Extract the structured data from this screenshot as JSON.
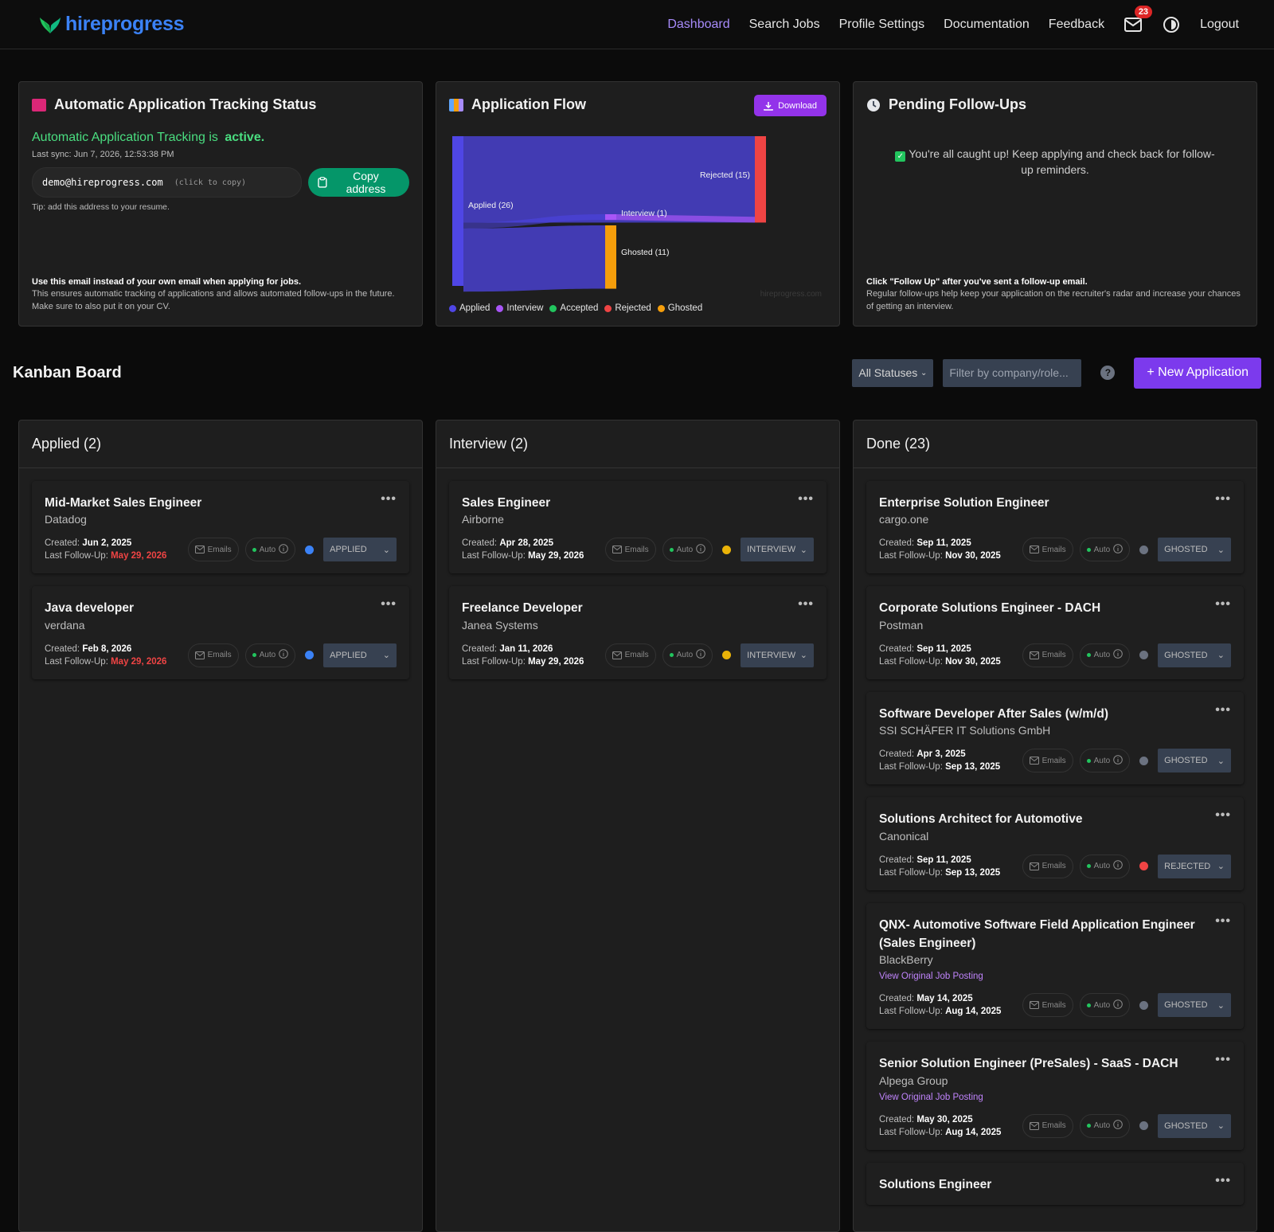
{
  "nav": {
    "brand": "hireprogress",
    "links": [
      "Dashboard",
      "Search Jobs",
      "Profile Settings",
      "Documentation",
      "Feedback"
    ],
    "mail_badge": "23",
    "logout": "Logout"
  },
  "tracking": {
    "title": "Automatic Application Tracking Status",
    "status_prefix": "Automatic Application Tracking is",
    "status_word": "active.",
    "last_sync": "Last sync: Jun 7, 2026, 12:53:38 PM",
    "email": "demo@hireprogress.com",
    "email_hint": "(click to copy)",
    "copy_label": "Copy address",
    "tip": "Tip: add this address to your resume.",
    "foot_bold": "Use this email instead of your own email when applying for jobs.",
    "foot_text": "This ensures automatic tracking of applications and allows automated follow-ups in the future. Make sure to also put it on your CV."
  },
  "flow": {
    "title": "Application Flow",
    "download_label": "Download",
    "watermark": "hireprogress.com",
    "nodes": {
      "applied": "Applied (26)",
      "rejected": "Rejected (15)",
      "interview": "Interview (1)",
      "ghosted": "Ghosted (11)"
    },
    "legend": [
      "Applied",
      "Interview",
      "Accepted",
      "Rejected",
      "Ghosted"
    ],
    "colors": {
      "applied": "#4f46e5",
      "interview": "#a855f7",
      "accepted": "#22c55e",
      "rejected": "#ef4444",
      "ghosted": "#f59e0b"
    }
  },
  "chart_data": {
    "type": "sankey",
    "nodes": [
      "Applied",
      "Rejected",
      "Interview",
      "Ghosted"
    ],
    "links": [
      {
        "source": "Applied",
        "target": "Rejected",
        "value": 15
      },
      {
        "source": "Applied",
        "target": "Interview",
        "value": 1
      },
      {
        "source": "Interview",
        "target": "Rejected",
        "value": 1
      },
      {
        "source": "Applied",
        "target": "Ghosted",
        "value": 11
      }
    ],
    "legend": [
      "Applied",
      "Interview",
      "Accepted",
      "Rejected",
      "Ghosted"
    ]
  },
  "followups": {
    "title": "Pending Follow-Ups",
    "caught_up": "You're all caught up! Keep applying and check back for follow-up reminders.",
    "foot_bold": "Click \"Follow Up\" after you've sent a follow-up email.",
    "foot_text": "Regular follow-ups help keep your application on the recruiter's radar and increase your chances of getting an interview."
  },
  "kanban": {
    "title": "Kanban Board",
    "status_filter": "All Statuses",
    "filter_placeholder": "Filter by company/role...",
    "new_label": "+ New Application",
    "emails_label": "Emails",
    "auto_label": "Auto",
    "created_label": "Created:",
    "followup_label": "Last Follow-Up:",
    "columns": [
      {
        "title": "Applied (2)"
      },
      {
        "title": "Interview (2)"
      },
      {
        "title": "Done (23)"
      }
    ]
  },
  "jobs": {
    "applied": [
      {
        "title": "Mid-Market Sales Engineer",
        "company": "Datadog",
        "created": "Jun 2, 2025",
        "followup": "May 29, 2026",
        "status": "APPLIED",
        "dot": "#3b82f6"
      },
      {
        "title": "Java developer",
        "company": "verdana",
        "created": "Feb 8, 2026",
        "followup": "May 29, 2026",
        "status": "APPLIED",
        "dot": "#3b82f6"
      }
    ],
    "interview": [
      {
        "title": "Sales Engineer",
        "company": "Airborne",
        "created": "Apr 28, 2025",
        "followup": "May 29, 2026",
        "status": "INTERVIEW",
        "dot": "#eab308"
      },
      {
        "title": "Freelance Developer",
        "company": "Janea Systems",
        "created": "Jan 11, 2026",
        "followup": "May 29, 2026",
        "status": "INTERVIEW",
        "dot": "#eab308"
      }
    ],
    "done": [
      {
        "title": "Enterprise Solution Engineer",
        "company": "cargo.one",
        "created": "Sep 11, 2025",
        "followup": "Nov 30, 2025",
        "status": "GHOSTED",
        "dot": "#6b7280"
      },
      {
        "title": "Corporate Solutions Engineer - DACH",
        "company": "Postman",
        "created": "Sep 11, 2025",
        "followup": "Nov 30, 2025",
        "status": "GHOSTED",
        "dot": "#6b7280"
      },
      {
        "title": "Software Developer After Sales (w/m/d)",
        "company": "SSI SCHÄFER IT Solutions GmbH",
        "created": "Apr 3, 2025",
        "followup": "Sep 13, 2025",
        "status": "GHOSTED",
        "dot": "#6b7280"
      },
      {
        "title": "Solutions Architect for Automotive",
        "company": "Canonical",
        "created": "Sep 11, 2025",
        "followup": "Sep 13, 2025",
        "status": "REJECTED",
        "dot": "#ef4444"
      },
      {
        "title": "QNX- Automotive Software Field Application Engineer (Sales Engineer)",
        "company": "BlackBerry",
        "link": "View Original Job Posting",
        "created": "May 14, 2025",
        "followup": "Aug 14, 2025",
        "status": "GHOSTED",
        "dot": "#6b7280"
      },
      {
        "title": "Senior Solution Engineer (PreSales) - SaaS - DACH",
        "company": "Alpega Group",
        "link": "View Original Job Posting",
        "created": "May 30, 2025",
        "followup": "Aug 14, 2025",
        "status": "GHOSTED",
        "dot": "#6b7280"
      },
      {
        "title": "Solutions Engineer",
        "company": "",
        "created": "",
        "followup": "",
        "status": "",
        "dot": "#6b7280"
      }
    ]
  }
}
